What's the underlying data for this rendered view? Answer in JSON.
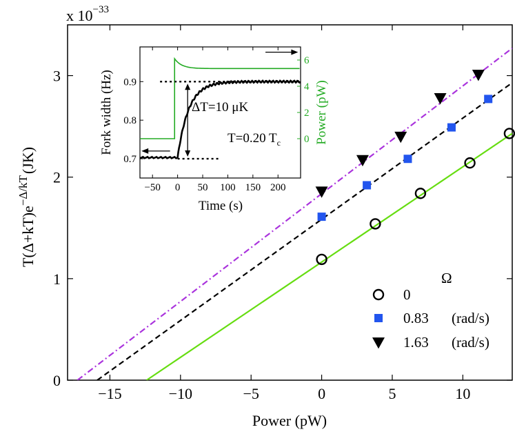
{
  "chart_data": {
    "main": {
      "type": "scatter",
      "xlabel": "Power (pW)",
      "ylabel": "T(Δ+kT)e^{−Δ/kT} (JK)",
      "ylabel_parts": {
        "base": "T(Δ+kT)e",
        "sup": "−Δ/kT",
        "unit": "(JK)"
      },
      "multiplier": "x 10",
      "multiplier_exp": "−33",
      "xlim": [
        -18,
        13.5
      ],
      "ylim": [
        0,
        3.5
      ],
      "xticks": [
        -15,
        -10,
        -5,
        0,
        5,
        10
      ],
      "xtick_labels": [
        "−15",
        "−10",
        "−5",
        "0",
        "5",
        "10"
      ],
      "yticks": [
        0,
        1,
        2,
        3
      ],
      "legend_title": "Ω",
      "series": [
        {
          "name": "0",
          "unit": "",
          "marker": "circle",
          "color": "#000000",
          "x": [
            0,
            3.8,
            7.0,
            10.5,
            13.3
          ],
          "y": [
            1.19,
            1.54,
            1.84,
            2.14,
            2.43
          ],
          "fit": {
            "x": [
              -12.4,
              13.5
            ],
            "y": [
              0,
              2.43
            ],
            "color": "#66dd11",
            "dash": "solid"
          }
        },
        {
          "name": "0.83",
          "unit": "(rad/s)",
          "marker": "square",
          "color": "#2255ee",
          "x": [
            0,
            3.2,
            6.1,
            9.2,
            11.8
          ],
          "y": [
            1.61,
            1.92,
            2.18,
            2.49,
            2.77
          ],
          "fit": {
            "x": [
              -15.9,
              13.5
            ],
            "y": [
              0,
              2.93
            ],
            "color": "#000000",
            "dash": "dash"
          }
        },
        {
          "name": "1.63",
          "unit": "(rad/s)",
          "marker": "triangle-down",
          "color": "#000000",
          "x": [
            0,
            2.9,
            5.6,
            8.4,
            11.1
          ],
          "y": [
            1.86,
            2.17,
            2.4,
            2.78,
            3.01
          ],
          "fit": {
            "x": [
              -17.3,
              13.5
            ],
            "y": [
              0,
              3.27
            ],
            "color": "#aa33dd",
            "dash": "dashdot"
          }
        }
      ]
    },
    "inset": {
      "type": "line",
      "xlabel": "Time (s)",
      "ylabel_left": "Fork width (Hz)",
      "ylabel_right": "Power (pW)",
      "right_color": "#22aa22",
      "xlim": [
        -75,
        245
      ],
      "ylim_left": [
        0.65,
        0.99
      ],
      "ylim_right": [
        -3.0,
        7.0
      ],
      "xticks": [
        -50,
        0,
        50,
        100,
        150,
        200
      ],
      "xtick_labels": [
        "−50",
        "0",
        "50",
        "100",
        "150",
        "200"
      ],
      "yticks_left": [
        0.7,
        0.8,
        0.9
      ],
      "yticks_right": [
        0,
        2,
        4,
        6
      ],
      "annotations": {
        "delta_T": "ΔT=10 μK",
        "temp_main": "T=0.20 T",
        "temp_sub": "c"
      },
      "reference_levels": {
        "upper": 0.9,
        "lower": 0.7
      }
    }
  }
}
